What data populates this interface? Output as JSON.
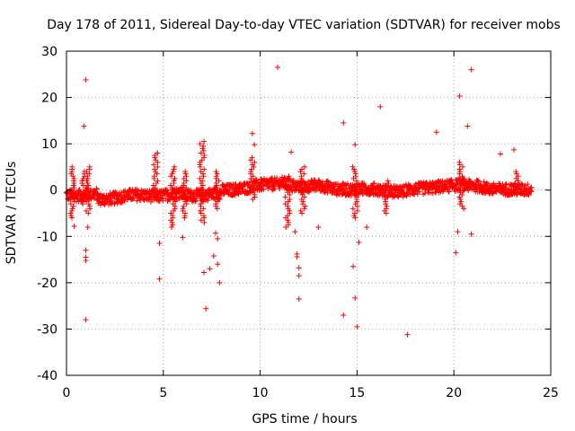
{
  "chart_data": {
    "type": "scatter",
    "title": "Day 178 of 2011, Sidereal Day-to-day VTEC variation (SDTVAR) for receiver mobs",
    "xlabel": "GPS time / hours",
    "ylabel": "SDTVAR / TECUs",
    "xlim": [
      0,
      25
    ],
    "ylim": [
      -40,
      30
    ],
    "xticks": [
      0,
      5,
      10,
      15,
      20,
      25
    ],
    "yticks": [
      -40,
      -30,
      -20,
      -10,
      0,
      10,
      20,
      30
    ],
    "xtick_labels": [
      "0",
      "5",
      "10",
      "15",
      "20",
      "25"
    ],
    "ytick_labels": [
      "-40",
      "-30",
      "-20",
      "-10",
      "0",
      "10",
      "20",
      "30"
    ],
    "grid": true,
    "marker": "plus",
    "color": "#ff0000",
    "band_x_range": [
      0,
      24
    ],
    "band_description": "dense cluster of points near 0 across the full day",
    "spikes": [
      {
        "x": 0.3,
        "ymin": -6,
        "ymax": 5
      },
      {
        "x": 0.9,
        "ymin": -3,
        "ymax": 4
      },
      {
        "x": 1.1,
        "ymin": -5,
        "ymax": 5
      },
      {
        "x": 4.6,
        "ymin": -1,
        "ymax": 8
      },
      {
        "x": 5.5,
        "ymin": -8,
        "ymax": 5
      },
      {
        "x": 6.1,
        "ymin": -6,
        "ymax": 4
      },
      {
        "x": 7.0,
        "ymin": -7,
        "ymax": 10
      },
      {
        "x": 7.8,
        "ymin": -4,
        "ymax": 4
      },
      {
        "x": 9.6,
        "ymin": -2,
        "ymax": 7
      },
      {
        "x": 11.4,
        "ymin": -8,
        "ymax": 3
      },
      {
        "x": 12.2,
        "ymin": -5,
        "ymax": 5
      },
      {
        "x": 14.9,
        "ymin": -6,
        "ymax": 5
      },
      {
        "x": 16.5,
        "ymin": -5,
        "ymax": 2
      },
      {
        "x": 20.4,
        "ymin": -4,
        "ymax": 6
      },
      {
        "x": 23.2,
        "ymin": -1,
        "ymax": 4
      }
    ],
    "outliers": [
      {
        "x": 0.9,
        "y": 13.8
      },
      {
        "x": 1.0,
        "y": 23.8
      },
      {
        "x": 1.0,
        "y": -28.0
      },
      {
        "x": 1.0,
        "y": -13.0
      },
      {
        "x": 1.0,
        "y": -14.5
      },
      {
        "x": 1.0,
        "y": -15.2
      },
      {
        "x": 1.1,
        "y": -8.0
      },
      {
        "x": 0.4,
        "y": -7.8
      },
      {
        "x": 4.7,
        "y": 8.0
      },
      {
        "x": 4.8,
        "y": -19.2
      },
      {
        "x": 4.8,
        "y": -11.5
      },
      {
        "x": 6.0,
        "y": -10.2
      },
      {
        "x": 7.1,
        "y": 10.5
      },
      {
        "x": 7.1,
        "y": -17.8
      },
      {
        "x": 7.2,
        "y": -25.6
      },
      {
        "x": 7.4,
        "y": -17.0
      },
      {
        "x": 7.6,
        "y": -14.2
      },
      {
        "x": 7.7,
        "y": -9.3
      },
      {
        "x": 7.8,
        "y": -10.5
      },
      {
        "x": 7.8,
        "y": -16.0
      },
      {
        "x": 7.9,
        "y": -20.0
      },
      {
        "x": 9.6,
        "y": 12.2
      },
      {
        "x": 9.7,
        "y": 9.8
      },
      {
        "x": 10.9,
        "y": 26.5
      },
      {
        "x": 11.6,
        "y": 8.2
      },
      {
        "x": 11.8,
        "y": -9.0
      },
      {
        "x": 11.9,
        "y": -13.8
      },
      {
        "x": 11.9,
        "y": -14.4
      },
      {
        "x": 12.0,
        "y": -16.8
      },
      {
        "x": 12.0,
        "y": -18.5
      },
      {
        "x": 12.0,
        "y": -23.5
      },
      {
        "x": 13.0,
        "y": -8.0
      },
      {
        "x": 14.3,
        "y": 14.5
      },
      {
        "x": 14.3,
        "y": -27.0
      },
      {
        "x": 14.8,
        "y": -16.5
      },
      {
        "x": 14.9,
        "y": 9.8
      },
      {
        "x": 14.9,
        "y": -23.3
      },
      {
        "x": 15.0,
        "y": -29.5
      },
      {
        "x": 15.1,
        "y": -11.3
      },
      {
        "x": 15.5,
        "y": -8.0
      },
      {
        "x": 16.2,
        "y": 18.0
      },
      {
        "x": 17.6,
        "y": -31.2
      },
      {
        "x": 19.1,
        "y": 12.5
      },
      {
        "x": 20.1,
        "y": -13.5
      },
      {
        "x": 20.2,
        "y": -9.0
      },
      {
        "x": 20.3,
        "y": 20.3
      },
      {
        "x": 20.7,
        "y": 13.8
      },
      {
        "x": 20.9,
        "y": 26.0
      },
      {
        "x": 20.9,
        "y": -9.5
      },
      {
        "x": 22.4,
        "y": 7.8
      },
      {
        "x": 23.1,
        "y": 8.7
      }
    ]
  }
}
